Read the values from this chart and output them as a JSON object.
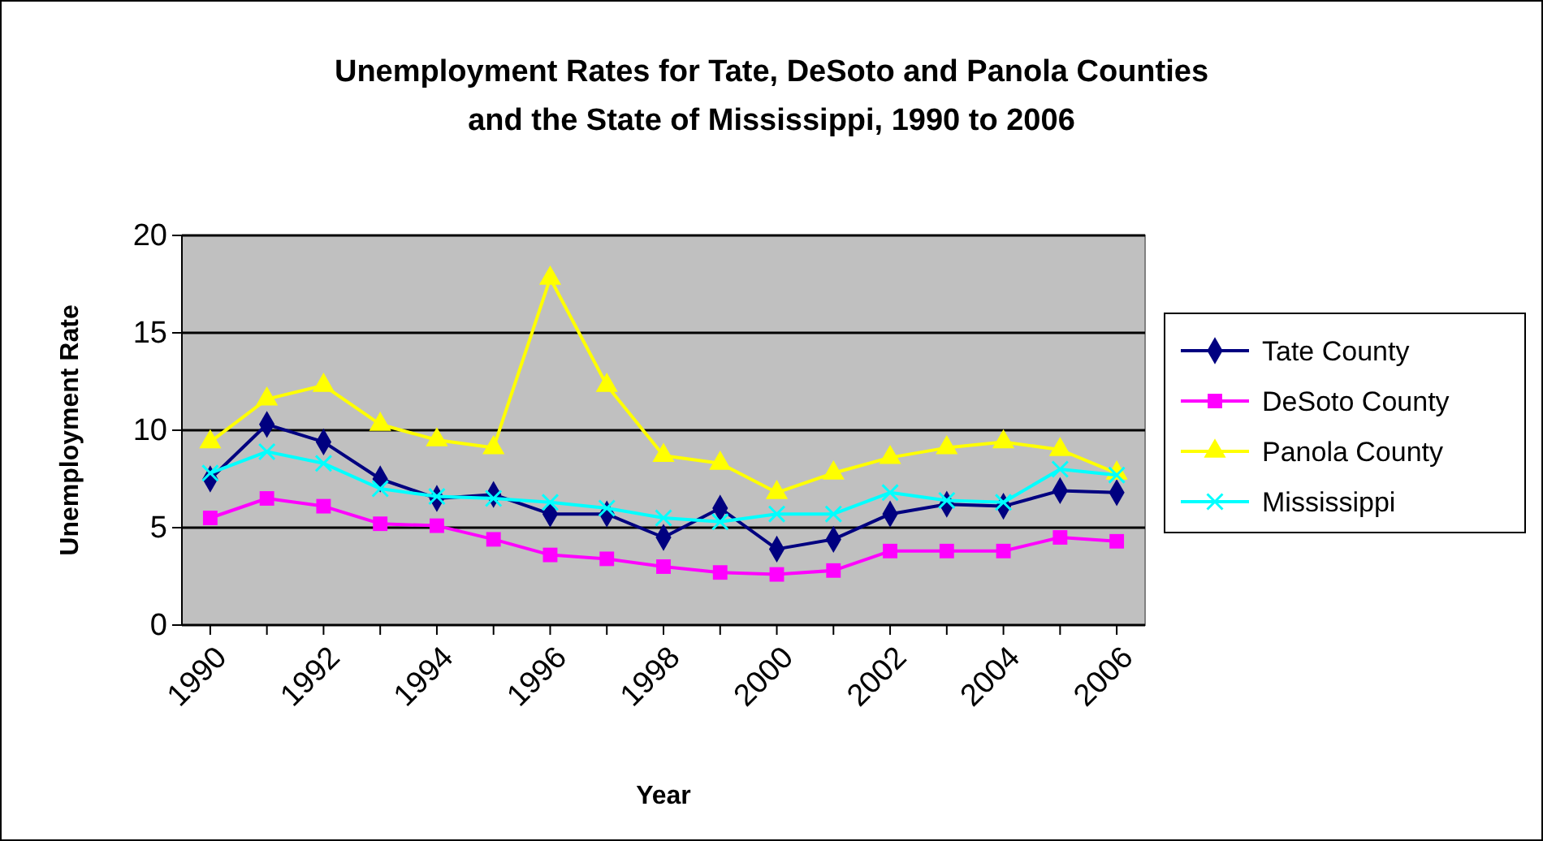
{
  "chart_data": {
    "type": "line",
    "title": "Unemployment Rates for Tate, DeSoto and Panola Counties\nand the State of Mississippi, 1990 to 2006",
    "xlabel": "Year",
    "ylabel": "Unemployment Rate",
    "categories": [
      "1990",
      null,
      "1992",
      null,
      "1994",
      null,
      "1996",
      null,
      "1998",
      null,
      "2000",
      null,
      "2002",
      null,
      "2004",
      null,
      "2006"
    ],
    "series": [
      {
        "name": "Tate County",
        "color": "#000080",
        "marker": "diamond",
        "values": [
          7.5,
          10.3,
          9.4,
          7.5,
          6.5,
          6.7,
          5.7,
          5.7,
          4.5,
          6.0,
          3.9,
          4.4,
          5.7,
          6.2,
          6.1,
          6.9,
          6.8
        ]
      },
      {
        "name": "DeSoto County",
        "color": "#ff00ff",
        "marker": "square",
        "values": [
          5.5,
          6.5,
          6.1,
          5.2,
          5.1,
          4.4,
          3.6,
          3.4,
          3.0,
          2.7,
          2.6,
          2.8,
          3.8,
          3.8,
          3.8,
          4.5,
          4.3
        ]
      },
      {
        "name": "Panola County",
        "color": "#ffff00",
        "marker": "triangle",
        "values": [
          9.4,
          11.6,
          12.3,
          10.3,
          9.5,
          9.1,
          17.8,
          12.3,
          8.7,
          8.3,
          6.8,
          7.8,
          8.6,
          9.1,
          9.4,
          9.0,
          7.8
        ]
      },
      {
        "name": "Mississippi",
        "color": "#00ffff",
        "marker": "cross",
        "values": [
          7.8,
          8.9,
          8.3,
          7.0,
          6.6,
          6.5,
          6.3,
          6.0,
          5.5,
          5.3,
          5.7,
          5.7,
          6.8,
          6.4,
          6.3,
          8.0,
          7.7
        ]
      }
    ],
    "ylim": [
      0,
      20
    ],
    "yticks": [
      0,
      5,
      10,
      15,
      20
    ],
    "grid": "y",
    "legend": "right",
    "line_style": "solid"
  }
}
